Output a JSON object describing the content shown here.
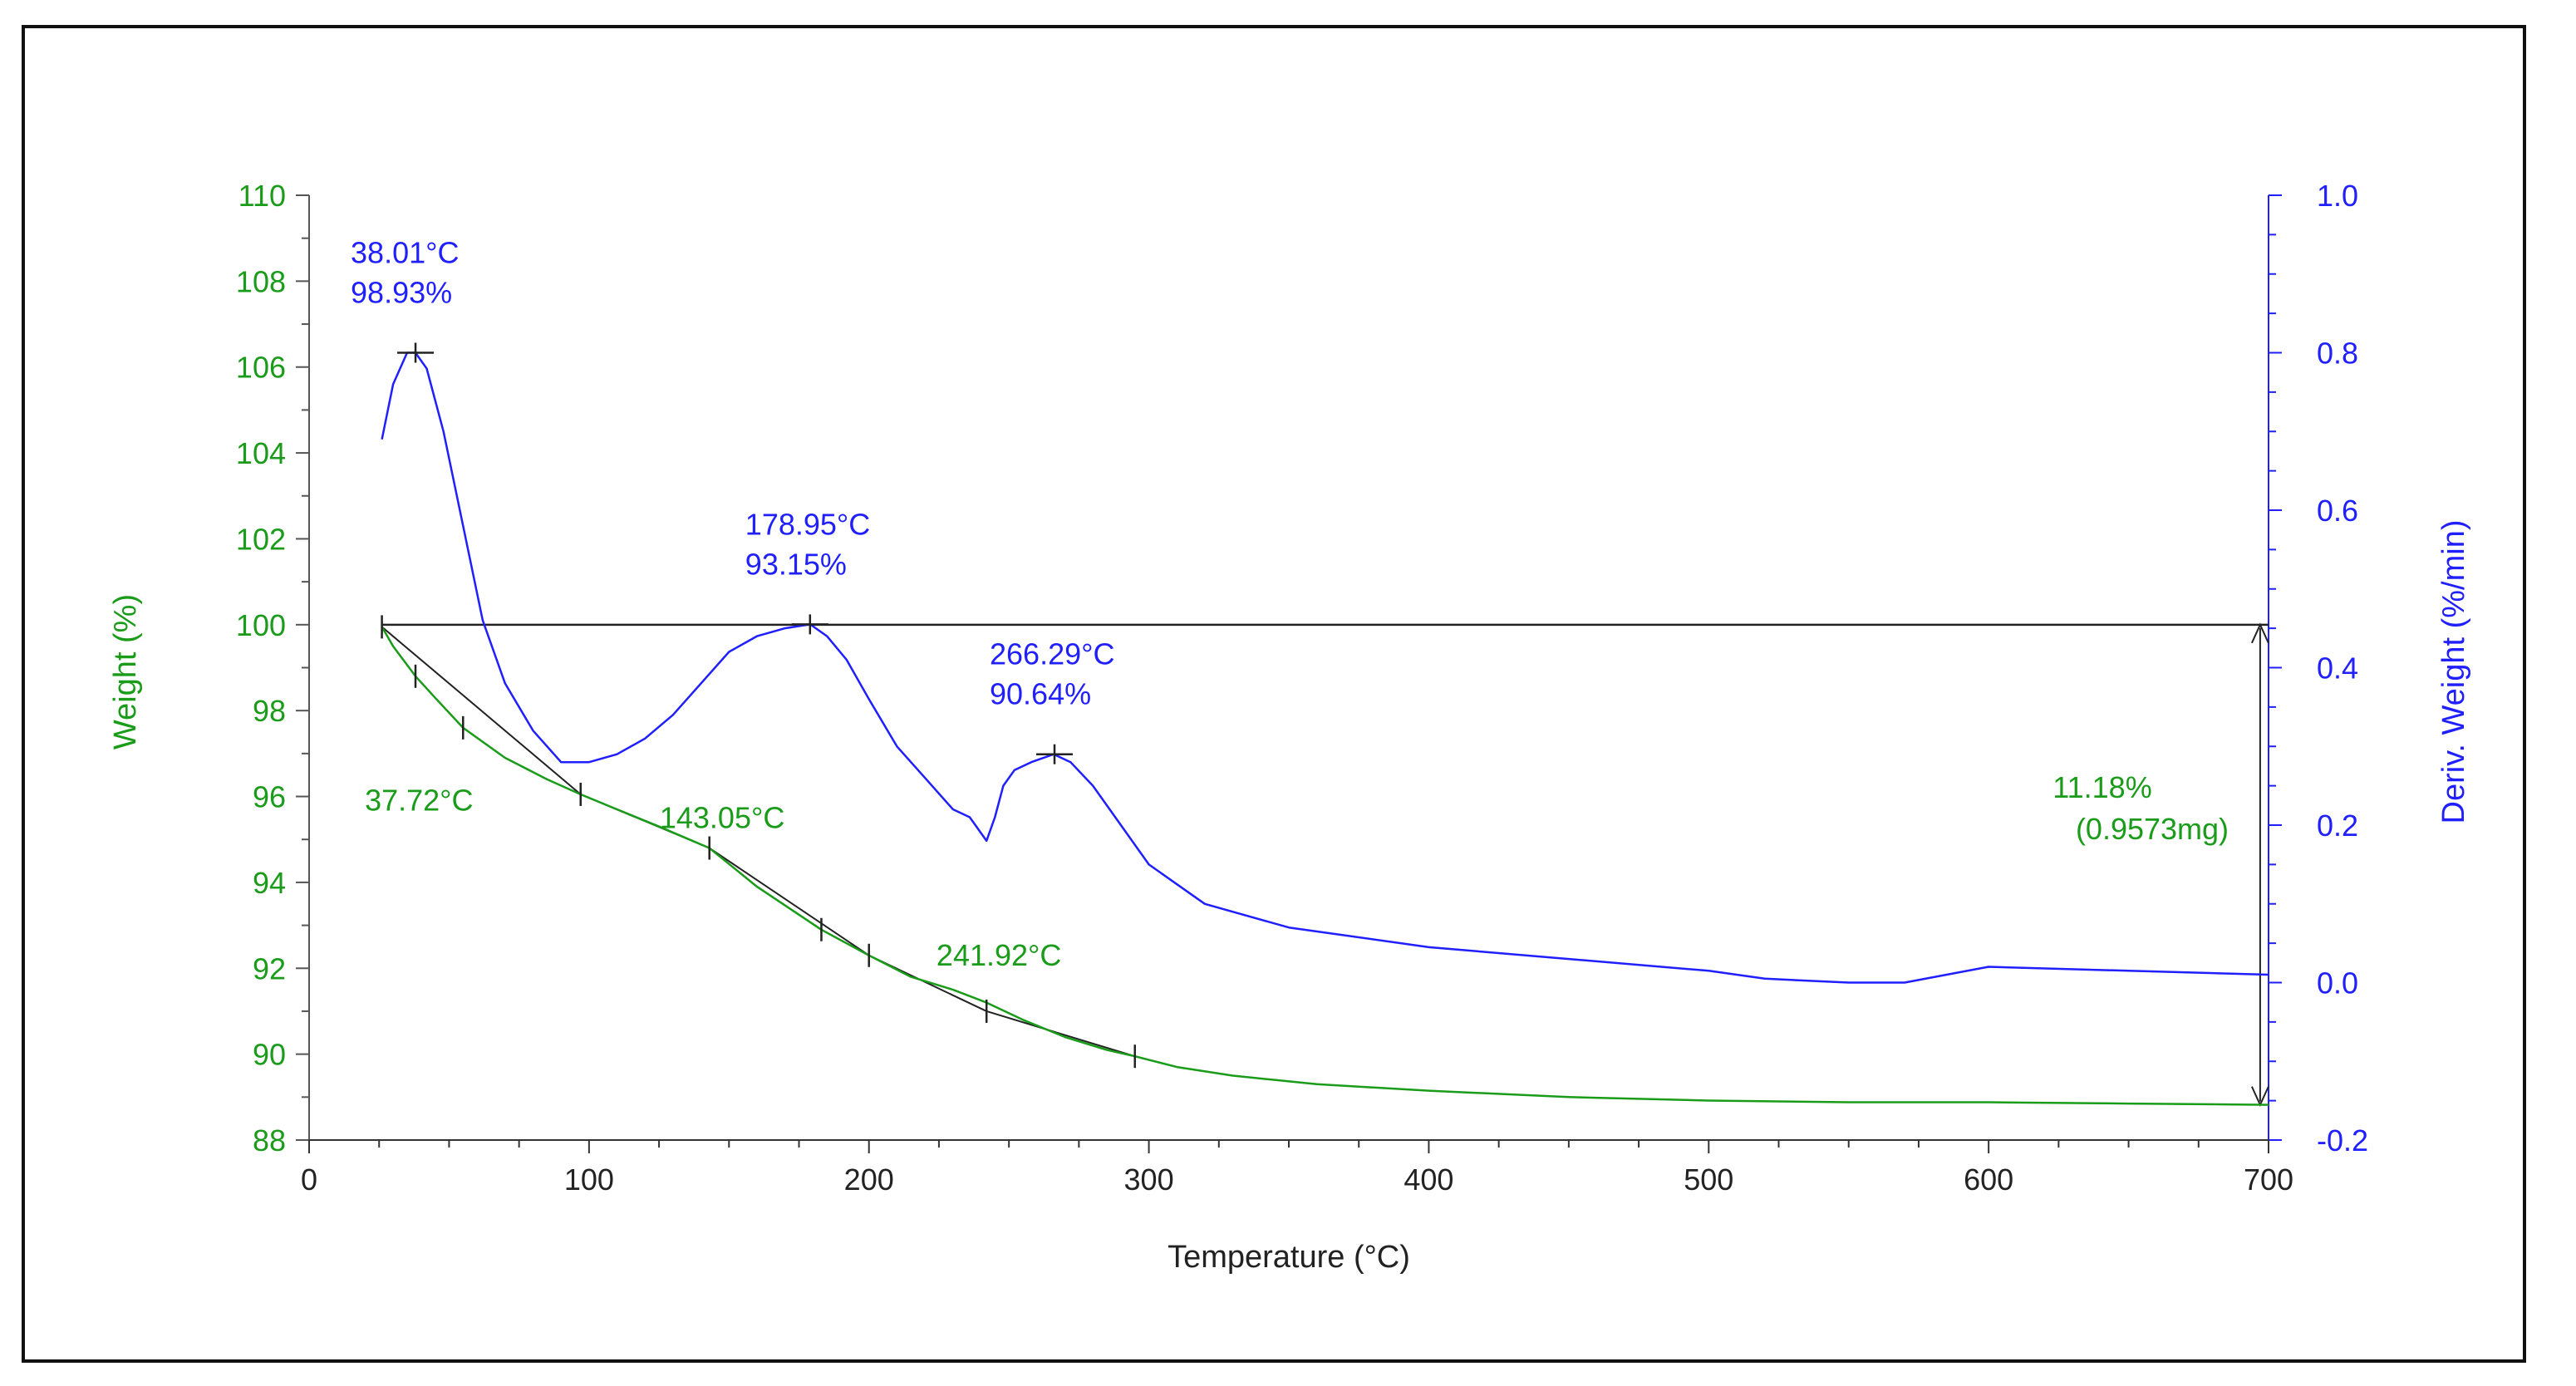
{
  "chart_data": {
    "type": "line",
    "xlabel": "Temperature (°C)",
    "ylabel_left": "Weight (%)",
    "ylabel_right": "Deriv. Weight (%/min)",
    "xlim": [
      0,
      700
    ],
    "ylim_left": [
      88,
      110
    ],
    "ylim_right": [
      -0.2,
      1.0
    ],
    "x_ticks": [
      "0",
      "100",
      "200",
      "300",
      "400",
      "500",
      "600",
      "700"
    ],
    "y_left_ticks": [
      "88",
      "90",
      "92",
      "94",
      "96",
      "98",
      "100",
      "102",
      "104",
      "106",
      "108",
      "110"
    ],
    "y_right_ticks": [
      "-0.2",
      "0.0",
      "0.2",
      "0.4",
      "0.6",
      "0.8",
      "1.0"
    ],
    "colors": {
      "weight": "#1a9c1a",
      "deriv": "#1f1fff",
      "axis_left": "#1a9c1a",
      "axis_right": "#1f1fff",
      "construction": "#222222"
    },
    "series": [
      {
        "name": "Weight",
        "axis": "left",
        "color": "#1a9c1a",
        "x": [
          26,
          30,
          38,
          45,
          55,
          70,
          85,
          97,
          110,
          125,
          143,
          160,
          183,
          200,
          215,
          230,
          242,
          255,
          270,
          285,
          295,
          310,
          330,
          360,
          400,
          450,
          500,
          550,
          600,
          650,
          700
        ],
        "y": [
          99.95,
          99.5,
          98.8,
          98.3,
          97.6,
          96.9,
          96.4,
          96.05,
          95.7,
          95.3,
          94.8,
          93.9,
          92.9,
          92.3,
          91.8,
          91.5,
          91.2,
          90.8,
          90.4,
          90.1,
          89.95,
          89.7,
          89.5,
          89.3,
          89.15,
          89.0,
          88.92,
          88.88,
          88.88,
          88.85,
          88.82
        ]
      },
      {
        "name": "Deriv. Weight",
        "axis": "right",
        "color": "#1f1fff",
        "x": [
          26,
          30,
          35,
          38,
          42,
          48,
          55,
          62,
          70,
          80,
          90,
          100,
          110,
          120,
          130,
          140,
          150,
          160,
          170,
          179,
          185,
          192,
          200,
          210,
          220,
          230,
          236,
          242,
          245,
          248,
          252,
          258,
          266,
          272,
          280,
          290,
          300,
          320,
          350,
          400,
          450,
          500,
          520,
          550,
          570,
          600,
          650,
          700
        ],
        "y": [
          0.69,
          0.76,
          0.8,
          0.8,
          0.78,
          0.7,
          0.58,
          0.46,
          0.38,
          0.32,
          0.28,
          0.28,
          0.29,
          0.31,
          0.34,
          0.38,
          0.42,
          0.44,
          0.45,
          0.455,
          0.44,
          0.41,
          0.36,
          0.3,
          0.26,
          0.22,
          0.21,
          0.18,
          0.21,
          0.25,
          0.27,
          0.28,
          0.29,
          0.28,
          0.25,
          0.2,
          0.15,
          0.1,
          0.07,
          0.045,
          0.03,
          0.015,
          0.005,
          0.0,
          0.0,
          0.02,
          0.015,
          0.01
        ]
      }
    ],
    "peaks": [
      {
        "temp": "38.01°C",
        "value": "98.93%",
        "x": 38.01,
        "y": 0.8
      },
      {
        "temp": "178.95°C",
        "value": "93.15%",
        "x": 178.95,
        "y": 0.455
      },
      {
        "temp": "266.29°C",
        "value": "90.64%",
        "x": 266.29,
        "y": 0.29
      }
    ],
    "onset_labels": [
      {
        "text": "37.72°C",
        "x": 37.72,
        "y": 95.9
      },
      {
        "text": "143.05°C",
        "x": 143.05,
        "y": 95.5
      },
      {
        "text": "241.92°C",
        "x": 241.92,
        "y": 92.3
      }
    ],
    "step": {
      "text1": "11.18%",
      "text2": "(0.9573mg)",
      "top": 100.0,
      "bottom": 88.82,
      "x": 697
    },
    "baseline": {
      "y": 100.0,
      "x_start": 26,
      "x_end": 700
    },
    "tangent_ticks": [
      {
        "x": 26,
        "y": 99.95
      },
      {
        "x": 38,
        "y": 98.8
      },
      {
        "x": 55,
        "y": 97.6
      },
      {
        "x": 97,
        "y": 96.05
      },
      {
        "x": 143,
        "y": 94.8
      },
      {
        "x": 183,
        "y": 92.9
      },
      {
        "x": 200,
        "y": 92.3
      },
      {
        "x": 242,
        "y": 91.0
      },
      {
        "x": 295,
        "y": 89.95
      }
    ]
  }
}
